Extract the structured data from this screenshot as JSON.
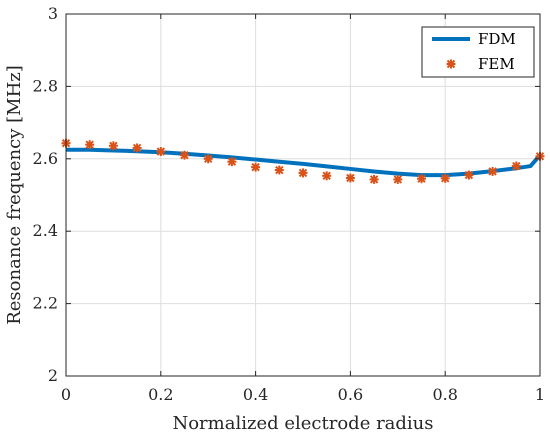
{
  "chart_data": {
    "type": "line",
    "xlabel": "Normalized electrode radius",
    "ylabel": "Resonance frequency [MHz]",
    "xlim": [
      0,
      1
    ],
    "ylim": [
      2,
      3
    ],
    "xticks": [
      "0",
      "0.2",
      "0.4",
      "0.6",
      "0.8",
      "1"
    ],
    "yticks": [
      "2",
      "2.2",
      "2.4",
      "2.6",
      "2.8",
      "3"
    ],
    "grid": true,
    "legend_position": "top-right",
    "series": [
      {
        "name": "FDM",
        "style": "line",
        "color": "#0072BD",
        "x": [
          0,
          0.05,
          0.1,
          0.15,
          0.2,
          0.25,
          0.3,
          0.35,
          0.4,
          0.45,
          0.5,
          0.55,
          0.6,
          0.65,
          0.7,
          0.75,
          0.8,
          0.85,
          0.9,
          0.95,
          0.98,
          1.0
        ],
        "y": [
          2.625,
          2.625,
          2.623,
          2.621,
          2.618,
          2.614,
          2.609,
          2.604,
          2.598,
          2.592,
          2.586,
          2.579,
          2.572,
          2.565,
          2.559,
          2.555,
          2.555,
          2.559,
          2.566,
          2.574,
          2.58,
          2.61
        ]
      },
      {
        "name": "FEM",
        "style": "marker",
        "color": "#D95319",
        "x": [
          0,
          0.05,
          0.1,
          0.15,
          0.2,
          0.25,
          0.3,
          0.35,
          0.4,
          0.45,
          0.5,
          0.55,
          0.6,
          0.65,
          0.7,
          0.75,
          0.8,
          0.85,
          0.9,
          0.95,
          1.0
        ],
        "y": [
          2.643,
          2.639,
          2.636,
          2.63,
          2.62,
          2.61,
          2.6,
          2.592,
          2.577,
          2.569,
          2.561,
          2.553,
          2.547,
          2.543,
          2.543,
          2.545,
          2.546,
          2.555,
          2.565,
          2.58,
          2.607
        ]
      }
    ]
  }
}
